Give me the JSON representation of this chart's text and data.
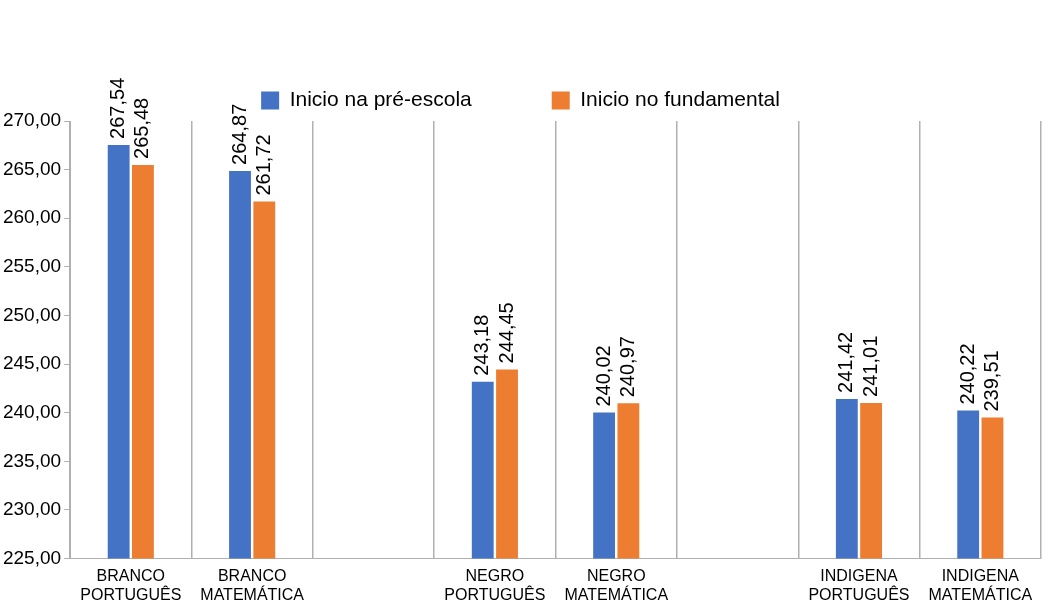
{
  "chart_data": {
    "type": "bar",
    "categories": [
      "BRANCO PORTUGUÊS",
      "BRANCO MATEMÁTICA",
      null,
      "NEGRO PORTUGUÊS",
      "NEGRO MATEMÁTICA",
      null,
      "INDIGENA PORTUGUÊS",
      "INDIGENA MATEMÁTICA"
    ],
    "series": [
      {
        "name": "Inicio na pré-escola",
        "color": "#4472c4",
        "values": [
          267.54,
          264.87,
          null,
          243.18,
          240.02,
          null,
          241.42,
          240.22
        ],
        "value_labels": [
          "267,54",
          "264,87",
          null,
          "243,18",
          "240,02",
          null,
          "241,42",
          "240,22"
        ]
      },
      {
        "name": "Inicio no fundamental",
        "color": "#ed7d31",
        "values": [
          265.48,
          261.72,
          null,
          244.45,
          240.97,
          null,
          241.01,
          239.51
        ],
        "value_labels": [
          "265,48",
          "261,72",
          null,
          "244,45",
          "240,97",
          null,
          "241,01",
          "239,51"
        ]
      }
    ],
    "ylim": [
      225,
      270
    ],
    "yticks": [
      {
        "value": 225,
        "label": "225,00"
      },
      {
        "value": 230,
        "label": "230,00"
      },
      {
        "value": 235,
        "label": "235,00"
      },
      {
        "value": 240,
        "label": "240,00"
      },
      {
        "value": 245,
        "label": "245,00"
      },
      {
        "value": 250,
        "label": "250,00"
      },
      {
        "value": 255,
        "label": "255,00"
      },
      {
        "value": 260,
        "label": "260,00"
      },
      {
        "value": 265,
        "label": "265,00"
      },
      {
        "value": 270,
        "label": "270,00"
      }
    ],
    "grid": "x",
    "legend": "top"
  }
}
